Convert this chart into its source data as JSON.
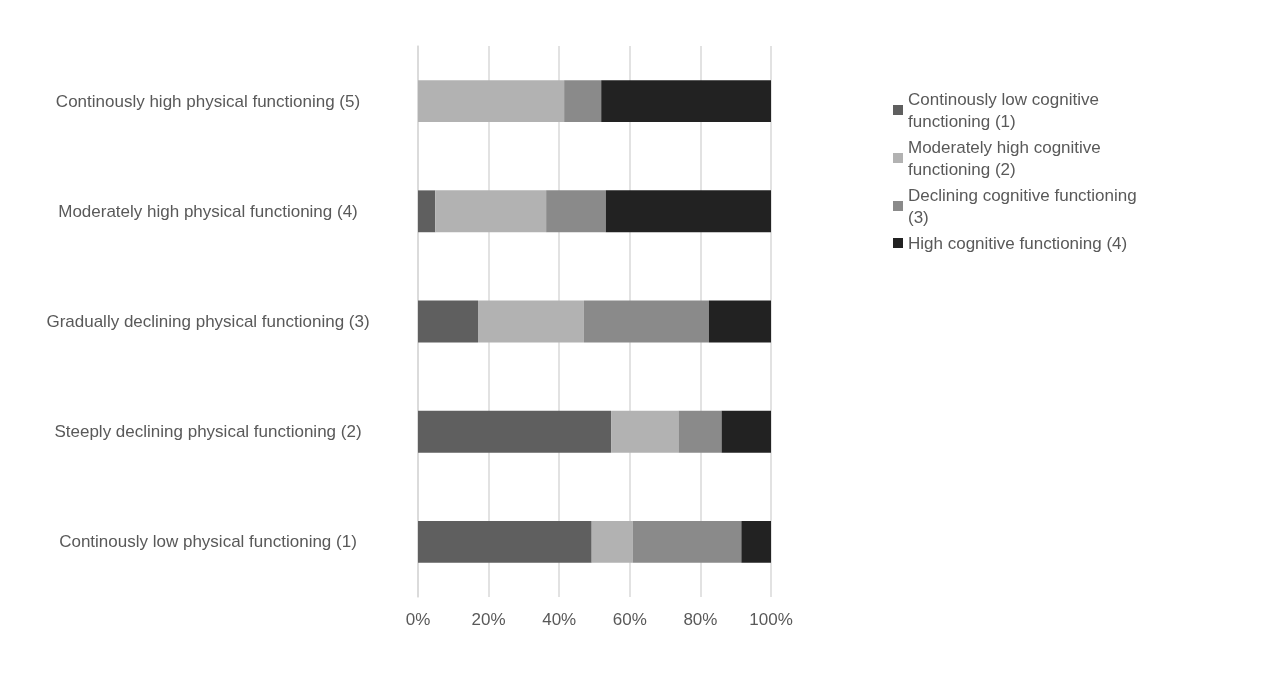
{
  "chart_data": {
    "type": "bar",
    "orientation": "horizontal",
    "stacked": true,
    "categories": [
      "Continously high physical functioning (5)",
      "Moderately high physical functioning (4)",
      "Gradually declining physical functioning (3)",
      "Steeply declining physical functioning (2)",
      "Continously low physical functioning (1)"
    ],
    "series": [
      {
        "name": "Continously low cognitive functioning (1)",
        "color": "#5f5f5f",
        "values": [
          0,
          4.9,
          17.0,
          54.7,
          49.2
        ]
      },
      {
        "name": "Moderately high cognitive functioning (2)",
        "color": "#b2b2b2",
        "values": [
          41.4,
          31.4,
          30.0,
          19.1,
          11.6
        ]
      },
      {
        "name": "Declining cognitive functioning (3)",
        "color": "#8a8a8a",
        "values": [
          10.5,
          16.9,
          35.4,
          12.2,
          30.8
        ]
      },
      {
        "name": "High cognitive functioning (4)",
        "color": "#222222",
        "values": [
          48.1,
          46.8,
          17.6,
          14.0,
          8.4
        ]
      }
    ],
    "xlim": [
      0,
      100
    ],
    "xticks": [
      {
        "value": 0,
        "label": "0%"
      },
      {
        "value": 20,
        "label": "20%"
      },
      {
        "value": 40,
        "label": "40%"
      },
      {
        "value": 60,
        "label": "60%"
      },
      {
        "value": 80,
        "label": "80%"
      },
      {
        "value": 100,
        "label": "100%"
      }
    ],
    "grid": "x",
    "legend": "top right"
  }
}
